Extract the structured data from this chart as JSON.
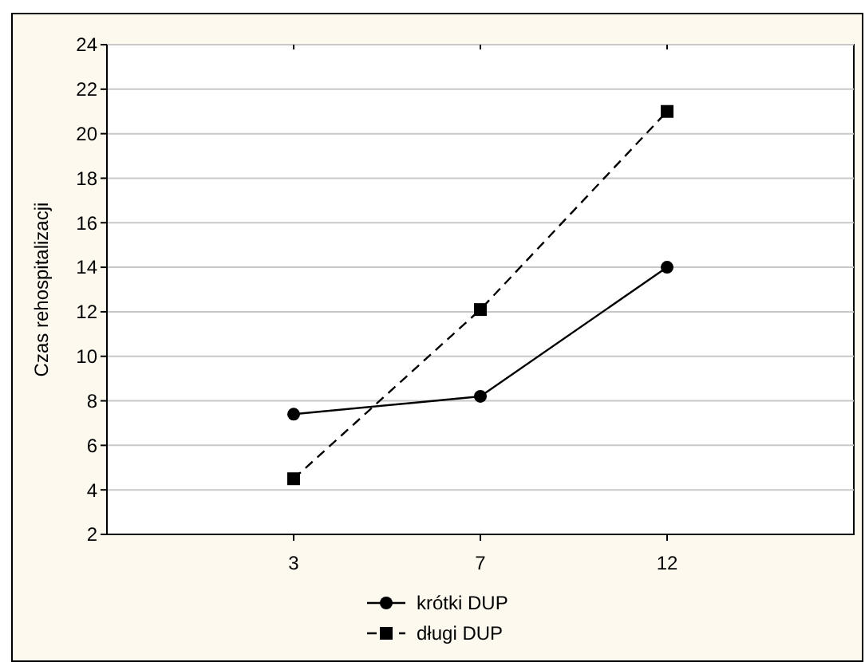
{
  "chart_data": {
    "type": "line",
    "ylabel": "Czas rehospitalizacji",
    "categories": [
      "3",
      "7",
      "12"
    ],
    "series": [
      {
        "name": "krótki DUP",
        "color": "#000000",
        "values": [
          7.4,
          8.2,
          14.0
        ],
        "marker": "circle",
        "line_style": "solid"
      },
      {
        "name": "długi DUP",
        "color": "#000000",
        "values": [
          4.5,
          12.1,
          21.0
        ],
        "marker": "square",
        "line_style": "dashed"
      }
    ],
    "ylim": [
      2,
      24
    ],
    "yticks": [
      2,
      4,
      6,
      8,
      10,
      12,
      14,
      16,
      18,
      20,
      22,
      24
    ],
    "grid": "y",
    "legend": "bottom"
  }
}
